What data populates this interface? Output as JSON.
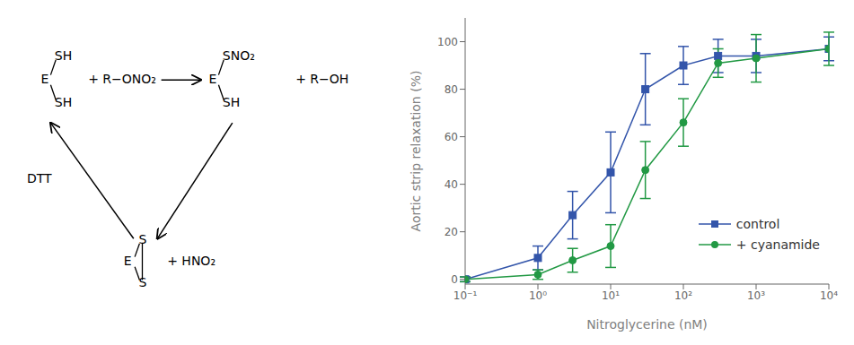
{
  "chart_data": {
    "type": "line",
    "annotations": [
      "SH",
      "E",
      "SH",
      "+ R−ONO₂",
      "SNO₂",
      "E",
      "SH",
      "+ R−OH",
      "DTT",
      "S",
      "E",
      "S",
      "+ HNO₂"
    ],
    "xlabel": "Nitroglycerine (nM)",
    "ylabel": "Aortic strip relaxation (%)",
    "x": [
      0.1,
      1.0,
      3.0,
      10.0,
      30.0,
      100.0,
      300.0,
      1000.0,
      10000.0
    ],
    "series": [
      {
        "name": "control",
        "color": "#3355aa",
        "marker": "square",
        "values": [
          0,
          9,
          27,
          45,
          80,
          90,
          94,
          94,
          97
        ],
        "errors": [
          1,
          5,
          10,
          17,
          15,
          8,
          7,
          7,
          5
        ]
      },
      {
        "name": "+ cyanamide",
        "color": "#229944",
        "marker": "circle",
        "values": [
          0,
          2,
          8,
          14,
          46,
          66,
          91,
          93,
          97
        ],
        "errors": [
          1,
          2,
          5,
          9,
          12,
          10,
          6,
          10,
          7
        ]
      }
    ],
    "log": "x",
    "xlim": [
      0.1,
      10000
    ],
    "xticks": [
      {
        "value": 0.1,
        "label": "10⁻¹"
      },
      {
        "value": 1,
        "label": "10⁰"
      },
      {
        "value": 10,
        "label": "10¹"
      },
      {
        "value": 100,
        "label": "10²"
      },
      {
        "value": 1000,
        "label": "10³"
      },
      {
        "value": 10000,
        "label": "10⁴"
      }
    ],
    "ylim": [
      -2,
      110
    ],
    "yticks": [
      0,
      20,
      40,
      60,
      80,
      100
    ],
    "grid": false,
    "legend": "lower right"
  }
}
